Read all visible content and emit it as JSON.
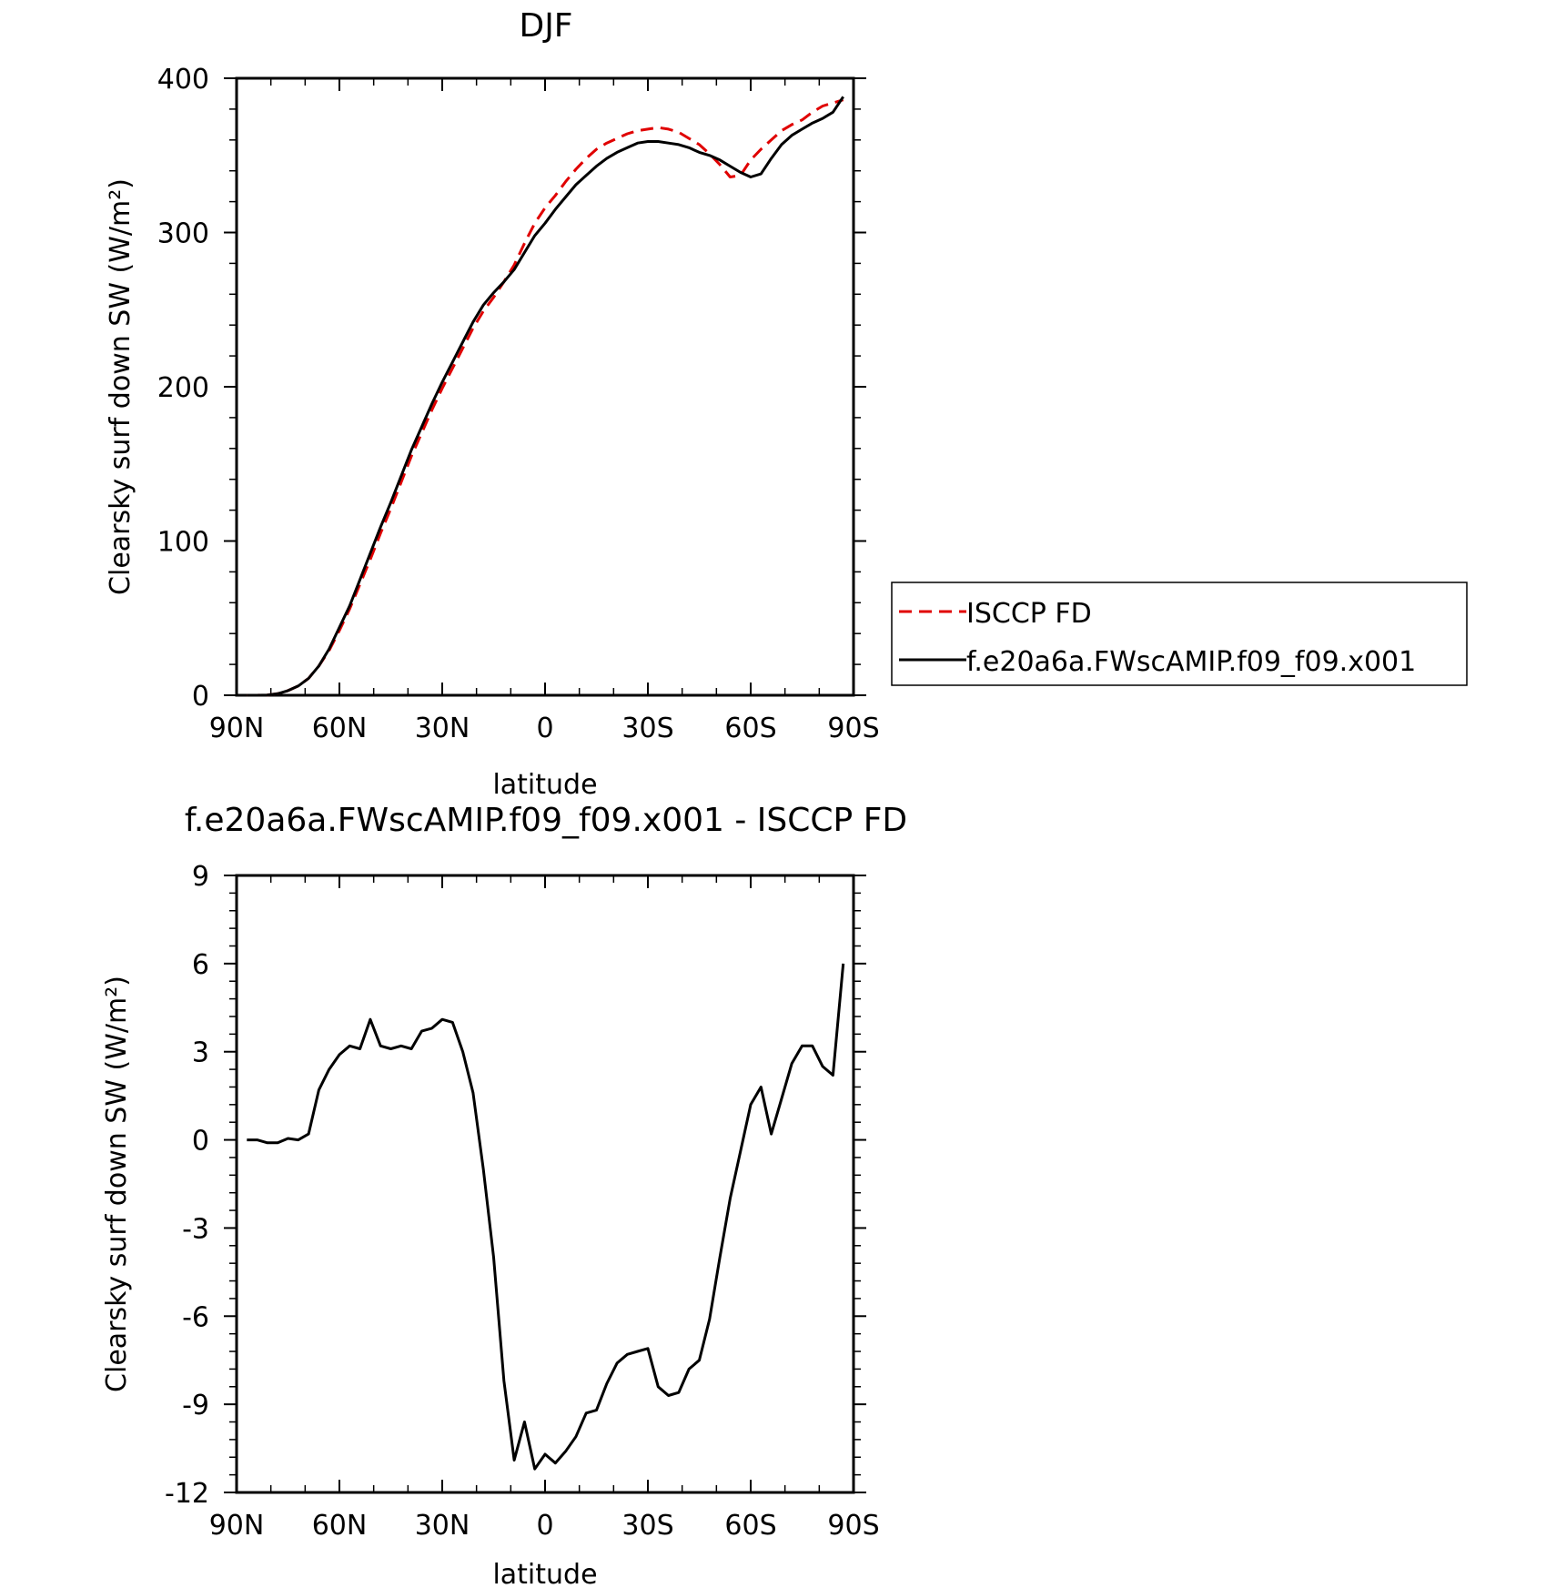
{
  "chart_data": [
    {
      "type": "line",
      "title": "DJF",
      "xlabel": "latitude",
      "ylabel": "Clearsky surf down SW (W/m²)",
      "xlim": [
        90,
        -90
      ],
      "ylim": [
        0,
        400
      ],
      "xticks": [
        90,
        60,
        30,
        0,
        -30,
        -60,
        -90
      ],
      "xtick_labels": [
        "90N",
        "60N",
        "30N",
        "0",
        "30S",
        "60S",
        "90S"
      ],
      "yticks": [
        0,
        100,
        200,
        300,
        400
      ],
      "ytick_labels": [
        "0",
        "100",
        "200",
        "300",
        "400"
      ],
      "legend_position": "right",
      "series": [
        {
          "name": "ISCCP FD",
          "color": "#e00000",
          "dash": "dashed",
          "x": [
            87,
            84,
            81,
            78,
            75,
            72,
            69,
            66,
            63,
            60,
            57,
            54,
            51,
            48,
            45,
            42,
            39,
            36,
            33,
            30,
            27,
            24,
            21,
            18,
            15,
            12,
            9,
            6,
            3,
            0,
            -3,
            -6,
            -9,
            -12,
            -15,
            -18,
            -21,
            -24,
            -27,
            -30,
            -33,
            -36,
            -39,
            -42,
            -45,
            -48,
            -51,
            -54,
            -57,
            -60,
            -63,
            -66,
            -69,
            -72,
            -75,
            -78,
            -81,
            -84,
            -87
          ],
          "y": [
            0,
            0,
            0.2,
            1,
            3,
            6,
            11,
            19,
            29,
            42,
            56,
            72,
            88,
            105,
            121,
            138,
            155,
            170,
            185,
            199,
            212,
            225,
            238,
            249,
            258,
            268,
            279,
            293,
            306,
            316,
            324,
            333,
            341,
            348,
            354,
            358,
            361,
            364,
            366,
            367,
            368,
            367,
            365,
            361,
            357,
            351,
            344,
            336,
            337,
            347,
            354,
            360,
            366,
            370,
            373,
            378,
            382,
            384,
            386
          ]
        },
        {
          "name": "f.e20a6a.FWscAMIP.f09_f09.x001",
          "color": "#000000",
          "dash": "solid",
          "x": [
            87,
            84,
            81,
            78,
            75,
            72,
            69,
            66,
            63,
            60,
            57,
            54,
            51,
            48,
            45,
            42,
            39,
            36,
            33,
            30,
            27,
            24,
            21,
            18,
            15,
            12,
            9,
            6,
            3,
            0,
            -3,
            -6,
            -9,
            -12,
            -15,
            -18,
            -21,
            -24,
            -27,
            -30,
            -33,
            -36,
            -39,
            -42,
            -45,
            -48,
            -51,
            -54,
            -57,
            -60,
            -63,
            -66,
            -69,
            -72,
            -75,
            -78,
            -81,
            -84,
            -87
          ],
          "y": [
            0,
            0,
            0.2,
            1,
            3,
            6,
            11,
            19,
            30,
            44,
            58,
            75,
            92,
            109,
            125,
            142,
            159,
            174,
            189,
            203,
            216,
            229,
            242,
            253,
            261,
            268,
            276,
            287,
            298,
            306,
            315,
            323,
            331,
            337,
            343,
            348,
            352,
            355,
            358,
            359,
            359,
            358,
            357,
            355,
            352,
            350,
            347,
            343,
            339,
            336,
            338,
            348,
            357,
            363,
            367,
            371,
            374,
            378,
            388
          ]
        }
      ]
    },
    {
      "type": "line",
      "title": "f.e20a6a.FWscAMIP.f09_f09.x001 - ISCCP FD",
      "xlabel": "latitude",
      "ylabel": "Clearsky surf down SW (W/m²)",
      "xlim": [
        90,
        -90
      ],
      "ylim": [
        -12,
        9
      ],
      "xticks": [
        90,
        60,
        30,
        0,
        -30,
        -60,
        -90
      ],
      "xtick_labels": [
        "90N",
        "60N",
        "30N",
        "0",
        "30S",
        "60S",
        "90S"
      ],
      "yticks": [
        -12,
        -9,
        -6,
        -3,
        0,
        3,
        6,
        9
      ],
      "ytick_labels": [
        "-12",
        "-9",
        "-6",
        "-3",
        "0",
        "3",
        "6",
        "9"
      ],
      "series": [
        {
          "name": "",
          "color": "#000000",
          "dash": "solid",
          "x": [
            87,
            84,
            81,
            78,
            75,
            72,
            69,
            66,
            63,
            60,
            57,
            54,
            51,
            48,
            45,
            42,
            39,
            36,
            33,
            30,
            27,
            24,
            21,
            18,
            15,
            12,
            9,
            6,
            3,
            0,
            -3,
            -6,
            -9,
            -12,
            -15,
            -18,
            -21,
            -24,
            -27,
            -30,
            -33,
            -36,
            -39,
            -42,
            -45,
            -48,
            -51,
            -54,
            -57,
            -60,
            -63,
            -66,
            -69,
            -72,
            -75,
            -78,
            -81,
            -84,
            -87
          ],
          "y": [
            0,
            0,
            -0.1,
            -0.1,
            0.05,
            0,
            0.2,
            1.7,
            2.4,
            2.9,
            3.2,
            3.1,
            4.1,
            3.2,
            3.1,
            3.2,
            3.1,
            3.7,
            3.8,
            4.1,
            4.0,
            3.0,
            1.6,
            -1.0,
            -4.0,
            -8.2,
            -10.9,
            -9.6,
            -11.2,
            -10.7,
            -11.0,
            -10.6,
            -10.1,
            -9.3,
            -9.2,
            -8.3,
            -7.6,
            -7.3,
            -7.2,
            -7.1,
            -8.4,
            -8.7,
            -8.6,
            -7.8,
            -7.5,
            -6.1,
            -4.0,
            -2.0,
            -0.4,
            1.2,
            1.8,
            0.2,
            1.4,
            2.6,
            3.2,
            3.2,
            2.5,
            2.2,
            6.0
          ]
        }
      ]
    }
  ]
}
